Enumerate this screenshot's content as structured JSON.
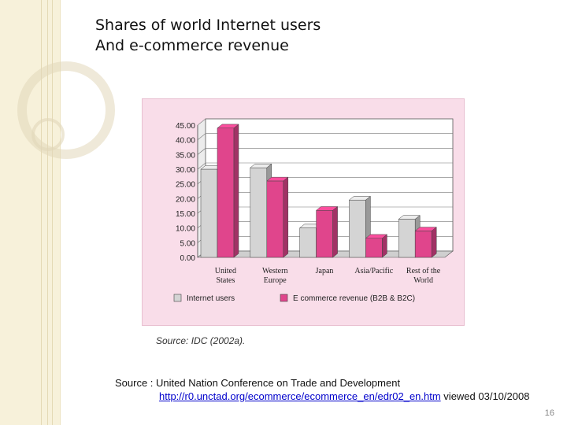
{
  "title": {
    "line1": "Shares of world Internet users",
    "line2": "And e-commerce revenue"
  },
  "chart_data": {
    "type": "bar",
    "categories": [
      [
        "United",
        "States"
      ],
      [
        "Western",
        "Europe"
      ],
      [
        "Japan"
      ],
      [
        "Asia/Pacific"
      ],
      [
        "Rest of the",
        "World"
      ]
    ],
    "series": [
      {
        "name": "Internet users",
        "color": "#d4d4d4",
        "values": [
          30,
          30.5,
          10,
          19.5,
          13
        ]
      },
      {
        "name": "E commerce revenue (B2B & B2C)",
        "color": "#e0458c",
        "values": [
          44,
          26,
          16,
          6.5,
          9
        ]
      }
    ],
    "yticks": [
      "45.00",
      "40.00",
      "35.00",
      "30.00",
      "25.00",
      "20.00",
      "15.00",
      "10.00",
      "5.00",
      "0.00"
    ],
    "ylim": [
      0,
      45
    ],
    "grid": true,
    "legend": "bottom",
    "xlabel": "",
    "ylabel": ""
  },
  "source_caption": "Source: IDC (2002a).",
  "source_note": {
    "prefix": "Source : United Nation Conference on Trade and Development",
    "url": "http://r0.unctad.org/ecommerce/ecommerce_en/edr02_en.htm",
    "suffix": " viewed 03/10/2008"
  },
  "page_number": "16"
}
